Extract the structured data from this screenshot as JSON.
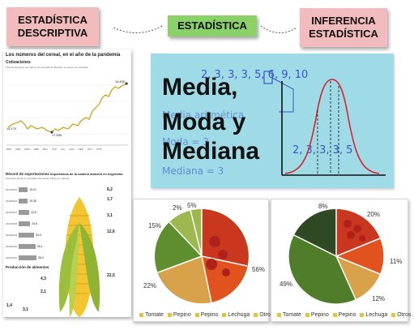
{
  "labels": {
    "descriptiva": [
      "ESTADÍSTICA",
      "DESCRIPTIVA"
    ],
    "estadistica": "ESTADÍSTICA",
    "inferencia": [
      "INFERENCIA",
      "ESTADÍSTICA"
    ]
  },
  "infographic": {
    "title": "Los números del cereal, en el año de la pandemia",
    "subtitle": "Cotizaciones",
    "caption": "Precios del grano de maíz en el mercado de Rosario, en pesos por tonelada",
    "price_low": "14.170",
    "price_high": "16.830",
    "price_mid": "17.630",
    "months": [
      "ENE",
      "FEB",
      "MAR",
      "ABR",
      "MAY",
      "JUN",
      "JUL",
      "AGO",
      "SEP",
      "OCT",
      "NOV"
    ],
    "exports_title": "Récord de exportaciones",
    "exports_sub": "Evolución anual en toneladas del cereal. Cifras en millones",
    "exports_years": [
      "2014/2015",
      "2015/2016",
      "2016/2017",
      "2017/2018",
      "2018/2019",
      "2019/2020",
      "2020/2021"
    ],
    "exports_values": [
      "19,21",
      "19,35",
      "22,6",
      "24,6",
      "33,0",
      "36,1",
      "38,0"
    ],
    "chain_title": "Importancia de la cadena maicera en Argentina",
    "chain_values": [
      "6,2",
      "1,7",
      "3,1",
      "12,6",
      "22,5"
    ],
    "food_title": "Producción de alimentos",
    "food_values": [
      "1,4",
      "3,1",
      "4,3",
      "2,1"
    ]
  },
  "stats_panel": {
    "lines": [
      "Media,",
      "Moda y",
      "Mediana"
    ],
    "handwritten": {
      "top_numbers": "2, 3, 3, 3, 5, 6, 9, 10",
      "top_numbers_right": "6, 9, 10",
      "middle_numbers": "2, 3, 3, 3, 5",
      "media": "Media aritmética",
      "moda": "Moda = 3",
      "mediana": "Mediana = 3"
    },
    "colors": {
      "background": "#9fdbe6",
      "curve": "#d8242a",
      "axes": "#111111"
    }
  },
  "pie_charts": [
    {
      "labels": [
        "2%",
        "5%",
        "15%",
        "56%",
        "22%"
      ],
      "legend": [
        "Tomate",
        "Pepino",
        "Pepino",
        "Lechuga",
        "Otros"
      ]
    },
    {
      "labels": [
        "8%",
        "20%",
        "11%",
        "12%",
        "49%"
      ],
      "legend": [
        "Tomate",
        "Pepino",
        "Pepino",
        "Lechuga",
        "Otros"
      ]
    }
  ]
}
